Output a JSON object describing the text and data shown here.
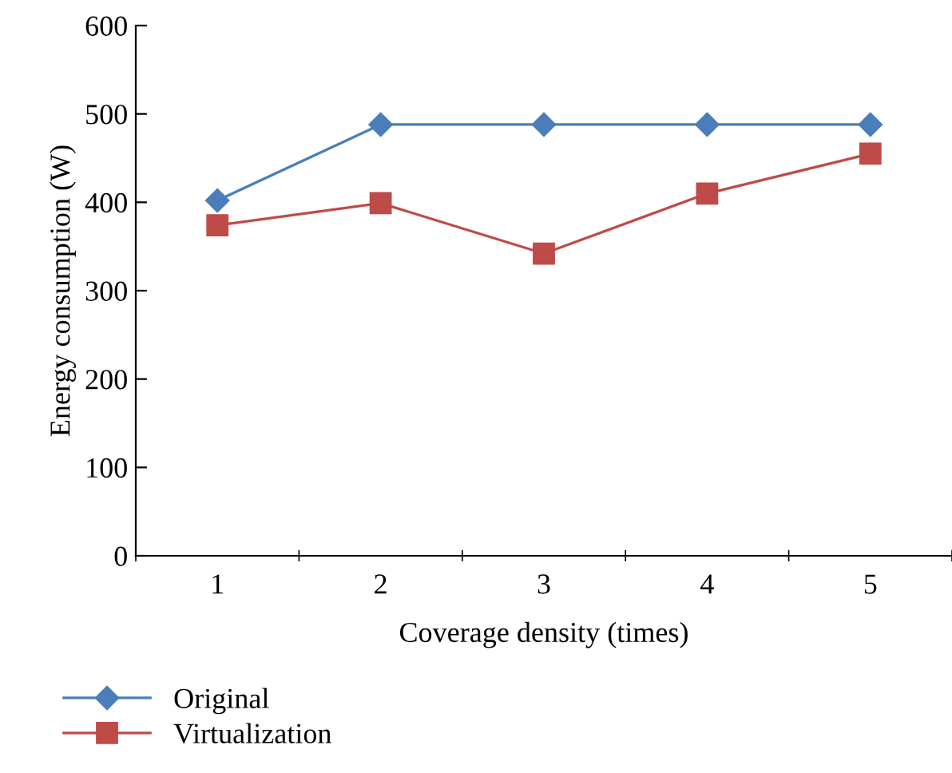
{
  "chart_data": {
    "type": "line",
    "xlabel": "Coverage density (times)",
    "ylabel": "Energy consumption (W)",
    "categories": [
      "1",
      "2",
      "3",
      "4",
      "5"
    ],
    "series": [
      {
        "name": "Original",
        "color": "#4a7ebb",
        "values": [
          402,
          488,
          488,
          488,
          488
        ],
        "marker": "diamond"
      },
      {
        "name": "Virtualization",
        "color": "#be4b48",
        "values": [
          374,
          399,
          342,
          410,
          455
        ],
        "marker": "square"
      }
    ],
    "ylim": [
      0,
      600
    ],
    "yticks": [
      0,
      100,
      200,
      300,
      400,
      500,
      600
    ],
    "grid": false,
    "legend": "bottom left",
    "line_style": "solid"
  }
}
